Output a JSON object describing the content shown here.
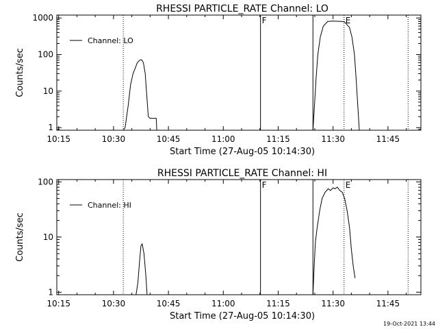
{
  "footer_timestamp": "19-Oct-2021 13:44",
  "chart_data": [
    {
      "type": "line",
      "title": "RHESSI PARTICLE_RATE Channel: LO",
      "xlabel": "Start Time (27-Aug-05 10:14:30)",
      "ylabel": "Counts/sec",
      "yscale": "log",
      "ylim": [
        0.85,
        1200
      ],
      "xlim": [
        "10:14:30",
        "11:54:00"
      ],
      "x_tick_labels": [
        "10:15",
        "10:30",
        "10:45",
        "11:00",
        "11:15",
        "11:30",
        "11:45"
      ],
      "y_tick_labels": [
        "1",
        "10",
        "100",
        "1000"
      ],
      "legend": {
        "placement": "top-left",
        "entries": [
          "Channel: LO"
        ]
      },
      "markers": [
        {
          "time": "10:32:40",
          "style": "dotted",
          "label": ""
        },
        {
          "time": "11:10:10",
          "style": "solid",
          "label": "F"
        },
        {
          "time": "11:24:30",
          "style": "solid",
          "label": ""
        },
        {
          "time": "11:33:00",
          "style": "dotted",
          "label": "E"
        },
        {
          "time": "11:50:30",
          "style": "dotted",
          "label": ""
        }
      ],
      "series": [
        {
          "name": "Channel: LO",
          "segments": [
            [
              [
                "10:32:40",
                0.85
              ],
              [
                "10:33:10",
                1
              ],
              [
                "10:34:00",
                4
              ],
              [
                "10:34:40",
                15
              ],
              [
                "10:35:20",
                30
              ],
              [
                "10:35:50",
                40
              ],
              [
                "10:36:30",
                60
              ],
              [
                "10:37:10",
                70
              ],
              [
                "10:37:40",
                72
              ],
              [
                "10:38:10",
                60
              ],
              [
                "10:38:40",
                30
              ],
              [
                "10:39:00",
                10
              ],
              [
                "10:39:30",
                2
              ],
              [
                "10:40:00",
                1.8
              ],
              [
                "10:40:50",
                1.8
              ],
              [
                "10:41:40",
                1.8
              ],
              [
                "10:41:50",
                0.85
              ]
            ],
            [
              [
                "11:24:30",
                0.85
              ],
              [
                "11:24:50",
                3
              ],
              [
                "11:25:20",
                20
              ],
              [
                "11:25:50",
                100
              ],
              [
                "11:26:30",
                300
              ],
              [
                "11:27:20",
                600
              ],
              [
                "11:28:30",
                800
              ],
              [
                "11:30:00",
                820
              ],
              [
                "11:31:30",
                810
              ],
              [
                "11:32:30",
                800
              ],
              [
                "11:33:10",
                780
              ],
              [
                "11:33:50",
                650
              ],
              [
                "11:34:30",
                550
              ],
              [
                "11:35:10",
                300
              ],
              [
                "11:35:50",
                100
              ],
              [
                "11:36:20",
                20
              ],
              [
                "11:36:50",
                3
              ],
              [
                "11:37:10",
                0.85
              ]
            ]
          ]
        }
      ]
    },
    {
      "type": "line",
      "title": "RHESSI PARTICLE_RATE Channel: HI",
      "xlabel": "Start Time (27-Aug-05 10:14:30)",
      "ylabel": "Counts/sec",
      "yscale": "log",
      "ylim": [
        0.9,
        110
      ],
      "xlim": [
        "10:14:30",
        "11:54:00"
      ],
      "x_tick_labels": [
        "10:15",
        "10:30",
        "10:45",
        "11:00",
        "11:15",
        "11:30",
        "11:45"
      ],
      "y_tick_labels": [
        "1",
        "10",
        "100"
      ],
      "legend": {
        "placement": "top-left",
        "entries": [
          "Channel: HI"
        ]
      },
      "markers": [
        {
          "time": "10:32:40",
          "style": "dotted",
          "label": ""
        },
        {
          "time": "11:10:10",
          "style": "solid",
          "label": "F"
        },
        {
          "time": "11:24:30",
          "style": "solid",
          "label": ""
        },
        {
          "time": "11:33:00",
          "style": "dotted",
          "label": "E"
        },
        {
          "time": "11:50:30",
          "style": "dotted",
          "label": ""
        }
      ],
      "series": [
        {
          "name": "Channel: HI",
          "segments": [
            [
              [
                "10:36:10",
                0.9
              ],
              [
                "10:36:40",
                1.5
              ],
              [
                "10:37:10",
                4
              ],
              [
                "10:37:30",
                7
              ],
              [
                "10:37:50",
                7.5
              ],
              [
                "10:38:20",
                5
              ],
              [
                "10:38:50",
                2
              ],
              [
                "10:39:10",
                0.9
              ]
            ],
            [
              [
                "11:24:30",
                0.9
              ],
              [
                "11:24:50",
                3
              ],
              [
                "11:25:10",
                8
              ],
              [
                "11:25:40",
                15
              ],
              [
                "11:26:20",
                30
              ],
              [
                "11:27:00",
                50
              ],
              [
                "11:27:50",
                65
              ],
              [
                "11:28:40",
                75
              ],
              [
                "11:29:20",
                70
              ],
              [
                "11:30:00",
                78
              ],
              [
                "11:30:30",
                75
              ],
              [
                "11:31:10",
                80
              ],
              [
                "11:31:50",
                70
              ],
              [
                "11:32:30",
                65
              ],
              [
                "11:33:10",
                50
              ],
              [
                "11:33:50",
                30
              ],
              [
                "11:34:30",
                15
              ],
              [
                "11:35:00",
                6
              ],
              [
                "11:35:30",
                3
              ],
              [
                "11:36:00",
                1.8
              ]
            ]
          ]
        }
      ]
    }
  ]
}
